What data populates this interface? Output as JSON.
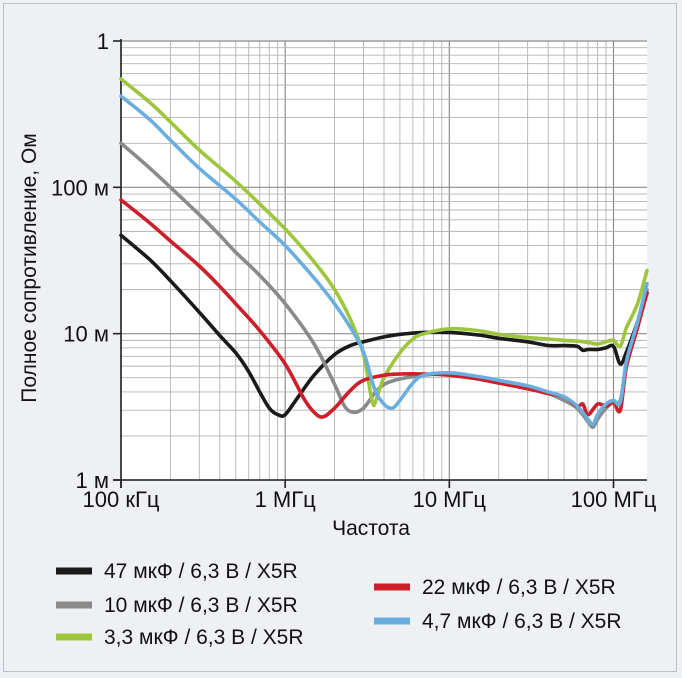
{
  "chart_data": {
    "type": "line",
    "xlabel": "Частота",
    "ylabel": "Полное сопротивление, Ом",
    "x_scale": "log",
    "y_scale": "log",
    "xlim": [
      100000,
      160000000
    ],
    "ylim": [
      0.001,
      1
    ],
    "x_ticks": [
      {
        "value": 100000,
        "label": "100 кГц"
      },
      {
        "value": 1000000,
        "label": "1 МГц"
      },
      {
        "value": 10000000,
        "label": "10 МГц"
      },
      {
        "value": 100000000,
        "label": "100 МГц"
      }
    ],
    "y_ticks": [
      {
        "value": 1,
        "label": "1"
      },
      {
        "value": 0.1,
        "label": "100 м"
      },
      {
        "value": 0.01,
        "label": "10 м"
      },
      {
        "value": 0.001,
        "label": "1 м"
      }
    ],
    "grid": true,
    "legend_position": "bottom",
    "series": [
      {
        "name": "47 мкФ / 6,3 В / X5R",
        "color": "#1a1a1a",
        "points": [
          [
            100000,
            0.047
          ],
          [
            150000,
            0.032
          ],
          [
            200000,
            0.023
          ],
          [
            300000,
            0.014
          ],
          [
            400000,
            0.0097
          ],
          [
            500000,
            0.0074
          ],
          [
            600000,
            0.0055
          ],
          [
            700000,
            0.004
          ],
          [
            800000,
            0.0031
          ],
          [
            900000,
            0.0028
          ],
          [
            1000000,
            0.0028
          ],
          [
            1200000,
            0.0037
          ],
          [
            1500000,
            0.0052
          ],
          [
            2000000,
            0.0072
          ],
          [
            2500000,
            0.0083
          ],
          [
            3000000,
            0.0088
          ],
          [
            4000000,
            0.0095
          ],
          [
            5000000,
            0.0099
          ],
          [
            7000000,
            0.0102
          ],
          [
            10000000,
            0.0102
          ],
          [
            15000000,
            0.0098
          ],
          [
            20000000,
            0.0093
          ],
          [
            30000000,
            0.0088
          ],
          [
            40000000,
            0.0083
          ],
          [
            50000000,
            0.0083
          ],
          [
            60000000,
            0.0082
          ],
          [
            65000000,
            0.0077
          ],
          [
            70000000,
            0.0078
          ],
          [
            80000000,
            0.0078
          ],
          [
            90000000,
            0.008
          ],
          [
            100000000,
            0.0082
          ],
          [
            110000000,
            0.0062
          ],
          [
            120000000,
            0.0075
          ],
          [
            130000000,
            0.0095
          ],
          [
            140000000,
            0.012
          ],
          [
            160000000,
            0.019
          ]
        ]
      },
      {
        "name": "10 мкФ / 6,3 В / X5R",
        "color": "#8a8a8a",
        "points": [
          [
            100000,
            0.2
          ],
          [
            150000,
            0.135
          ],
          [
            200000,
            0.1
          ],
          [
            300000,
            0.065
          ],
          [
            400000,
            0.047
          ],
          [
            500000,
            0.036
          ],
          [
            700000,
            0.025
          ],
          [
            1000000,
            0.016
          ],
          [
            1500000,
            0.0085
          ],
          [
            2000000,
            0.0045
          ],
          [
            2300000,
            0.0032
          ],
          [
            2600000,
            0.0029
          ],
          [
            3000000,
            0.0031
          ],
          [
            3500000,
            0.0039
          ],
          [
            4000000,
            0.0045
          ],
          [
            5000000,
            0.0049
          ],
          [
            7000000,
            0.0052
          ],
          [
            10000000,
            0.0053
          ],
          [
            15000000,
            0.0049
          ],
          [
            20000000,
            0.0046
          ],
          [
            30000000,
            0.0042
          ],
          [
            40000000,
            0.0039
          ],
          [
            50000000,
            0.0035
          ],
          [
            60000000,
            0.0031
          ],
          [
            70000000,
            0.0025
          ],
          [
            75000000,
            0.0023
          ],
          [
            80000000,
            0.0026
          ],
          [
            90000000,
            0.0031
          ],
          [
            100000000,
            0.0034
          ],
          [
            110000000,
            0.0035
          ],
          [
            120000000,
            0.006
          ],
          [
            140000000,
            0.011
          ],
          [
            160000000,
            0.02
          ]
        ]
      },
      {
        "name": "3,3 мкФ / 6,3 В / X5R",
        "color": "#9dc63c",
        "points": [
          [
            100000,
            0.55
          ],
          [
            150000,
            0.38
          ],
          [
            200000,
            0.28
          ],
          [
            300000,
            0.18
          ],
          [
            500000,
            0.11
          ],
          [
            700000,
            0.077
          ],
          [
            1000000,
            0.052
          ],
          [
            1500000,
            0.031
          ],
          [
            2000000,
            0.02
          ],
          [
            2500000,
            0.0125
          ],
          [
            3000000,
            0.0072
          ],
          [
            3400000,
            0.0034
          ],
          [
            3600000,
            0.0036
          ],
          [
            4000000,
            0.005
          ],
          [
            5000000,
            0.0074
          ],
          [
            6000000,
            0.0092
          ],
          [
            7000000,
            0.01
          ],
          [
            10000000,
            0.0108
          ],
          [
            15000000,
            0.0105
          ],
          [
            20000000,
            0.0099
          ],
          [
            30000000,
            0.0094
          ],
          [
            40000000,
            0.0092
          ],
          [
            50000000,
            0.009
          ],
          [
            60000000,
            0.0089
          ],
          [
            70000000,
            0.0087
          ],
          [
            80000000,
            0.0085
          ],
          [
            90000000,
            0.0088
          ],
          [
            100000000,
            0.009
          ],
          [
            110000000,
            0.0082
          ],
          [
            120000000,
            0.011
          ],
          [
            140000000,
            0.016
          ],
          [
            160000000,
            0.027
          ]
        ]
      },
      {
        "name": "22 мкФ / 6,3 В / X5R",
        "color": "#cc1f2a",
        "points": [
          [
            100000,
            0.082
          ],
          [
            150000,
            0.057
          ],
          [
            200000,
            0.043
          ],
          [
            300000,
            0.029
          ],
          [
            400000,
            0.021
          ],
          [
            500000,
            0.016
          ],
          [
            700000,
            0.0105
          ],
          [
            1000000,
            0.0062
          ],
          [
            1300000,
            0.0036
          ],
          [
            1500000,
            0.0029
          ],
          [
            1700000,
            0.0027
          ],
          [
            2000000,
            0.0031
          ],
          [
            2500000,
            0.0041
          ],
          [
            3000000,
            0.0048
          ],
          [
            4000000,
            0.0052
          ],
          [
            5000000,
            0.0053
          ],
          [
            7000000,
            0.0053
          ],
          [
            10000000,
            0.0052
          ],
          [
            15000000,
            0.0049
          ],
          [
            20000000,
            0.0046
          ],
          [
            30000000,
            0.0042
          ],
          [
            40000000,
            0.0039
          ],
          [
            50000000,
            0.0037
          ],
          [
            60000000,
            0.0032
          ],
          [
            65000000,
            0.0033
          ],
          [
            70000000,
            0.0028
          ],
          [
            80000000,
            0.0033
          ],
          [
            90000000,
            0.0032
          ],
          [
            100000000,
            0.0034
          ],
          [
            110000000,
            0.003
          ],
          [
            120000000,
            0.006
          ],
          [
            140000000,
            0.011
          ],
          [
            160000000,
            0.019
          ]
        ]
      },
      {
        "name": "4,7 мкФ / 6,3 В / X5R",
        "color": "#6aaee0",
        "points": [
          [
            100000,
            0.42
          ],
          [
            150000,
            0.29
          ],
          [
            200000,
            0.21
          ],
          [
            300000,
            0.135
          ],
          [
            500000,
            0.083
          ],
          [
            700000,
            0.058
          ],
          [
            1000000,
            0.04
          ],
          [
            1500000,
            0.024
          ],
          [
            2000000,
            0.016
          ],
          [
            2500000,
            0.011
          ],
          [
            3000000,
            0.0075
          ],
          [
            3500000,
            0.0042
          ],
          [
            4000000,
            0.0033
          ],
          [
            4500000,
            0.0031
          ],
          [
            5000000,
            0.0035
          ],
          [
            6000000,
            0.0046
          ],
          [
            7000000,
            0.0052
          ],
          [
            10000000,
            0.0054
          ],
          [
            15000000,
            0.0051
          ],
          [
            20000000,
            0.0048
          ],
          [
            30000000,
            0.0044
          ],
          [
            40000000,
            0.004
          ],
          [
            50000000,
            0.0037
          ],
          [
            60000000,
            0.0032
          ],
          [
            70000000,
            0.0026
          ],
          [
            75000000,
            0.0024
          ],
          [
            80000000,
            0.0028
          ],
          [
            90000000,
            0.0033
          ],
          [
            100000000,
            0.0035
          ],
          [
            110000000,
            0.0034
          ],
          [
            120000000,
            0.0065
          ],
          [
            140000000,
            0.012
          ],
          [
            160000000,
            0.022
          ]
        ]
      }
    ]
  }
}
